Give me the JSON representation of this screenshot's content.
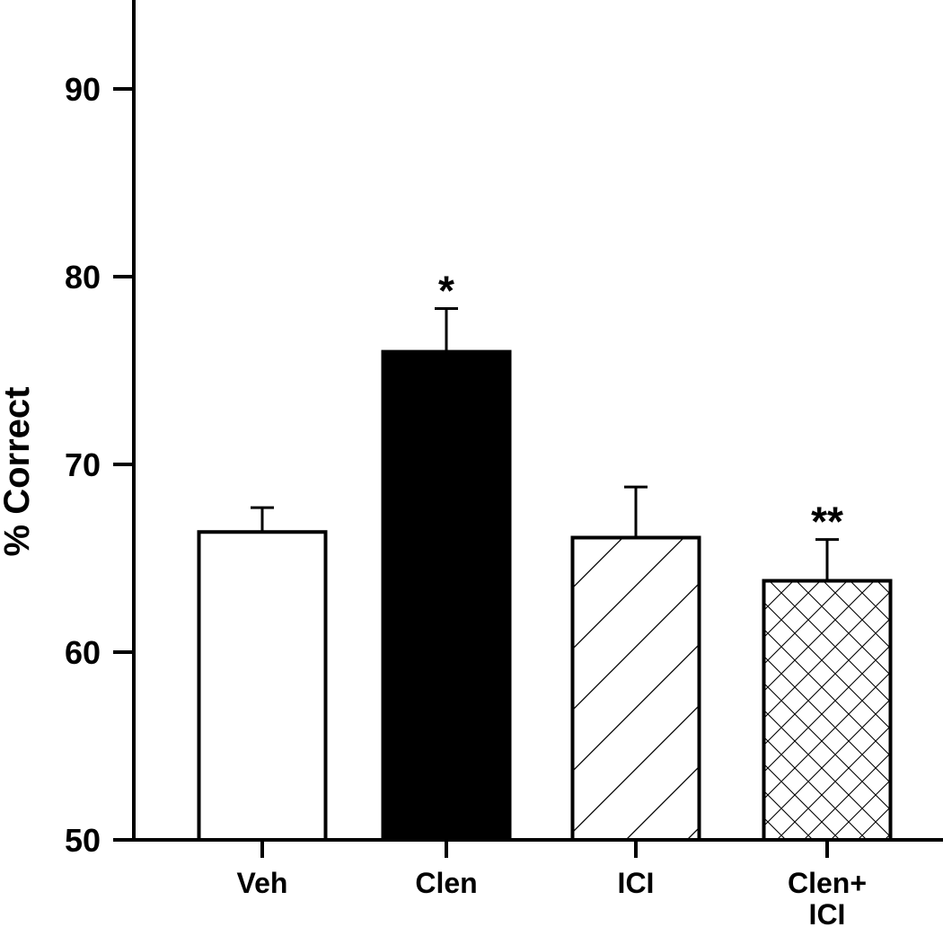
{
  "chart_data": {
    "type": "bar",
    "categories": [
      "Veh",
      "Clen",
      "ICI",
      [
        "Clen+",
        "ICI"
      ]
    ],
    "values": [
      66.4,
      76.0,
      66.1,
      63.8
    ],
    "errors": [
      1.3,
      2.3,
      2.7,
      2.2
    ],
    "significance": [
      "",
      "*",
      "",
      "**"
    ],
    "fills": [
      "white",
      "black",
      "hatch-diagonal",
      "hatch-cross"
    ],
    "ylabel": "% Correct",
    "xlabel": "",
    "ylim": [
      50,
      95
    ],
    "yticks": [
      50,
      60,
      70,
      80,
      90
    ],
    "grid": false,
    "legend": "none"
  }
}
